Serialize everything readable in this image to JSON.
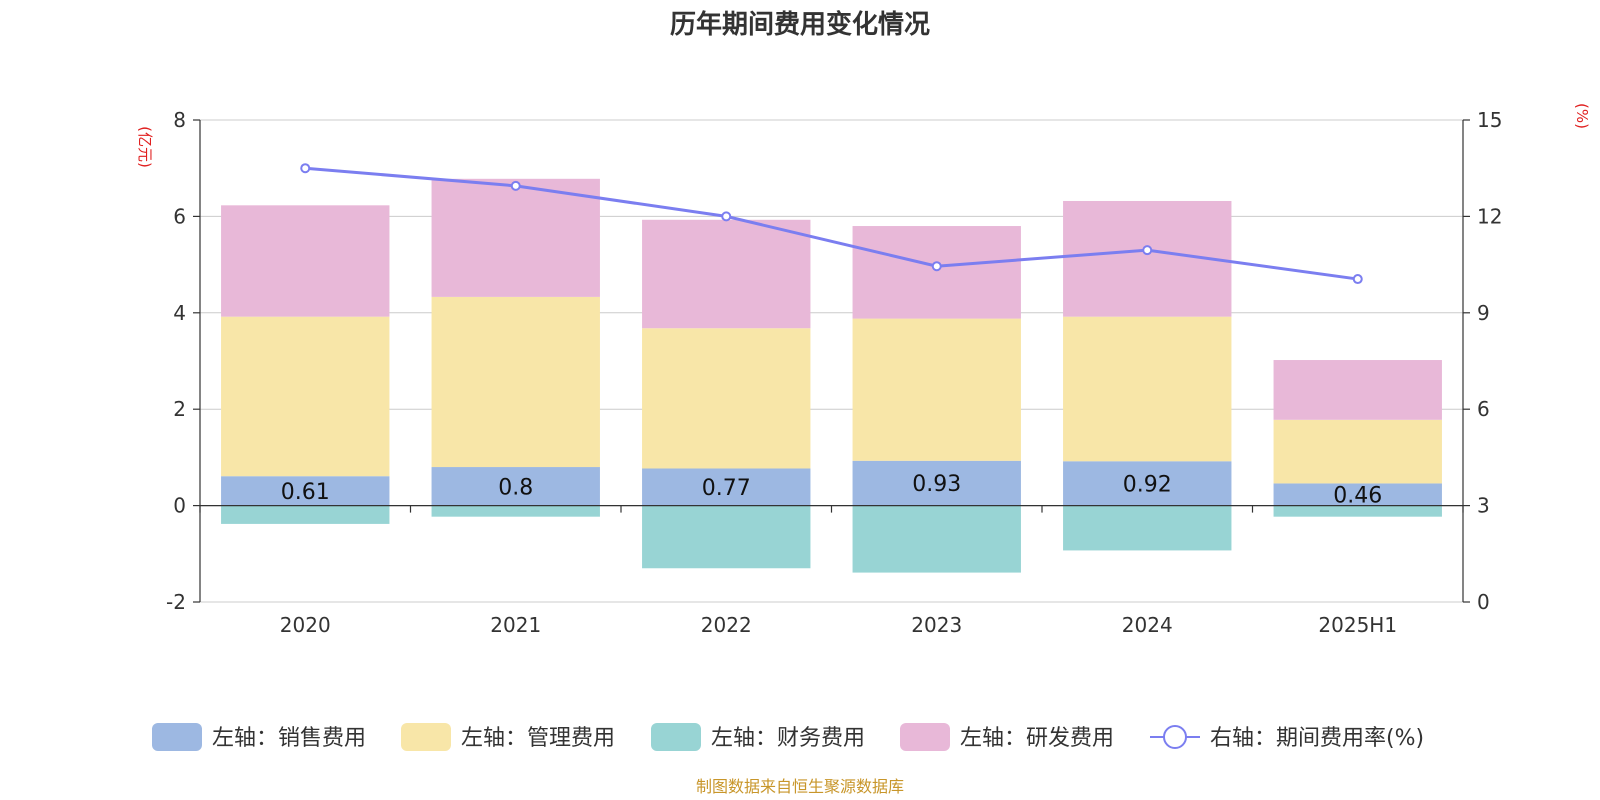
{
  "chart_data": {
    "type": "bar",
    "title": "历年期间费用变化情况",
    "categories": [
      "2020",
      "2021",
      "2022",
      "2023",
      "2024",
      "2025H1"
    ],
    "left_axis": {
      "unit_label": "(亿元)",
      "ylim": [
        -2,
        8
      ],
      "ticks": [
        "-2",
        "0",
        "2",
        "4",
        "6",
        "8"
      ]
    },
    "right_axis": {
      "unit_label": "(%)",
      "ylim": [
        0,
        15
      ],
      "ticks": [
        "0",
        "3",
        "6",
        "9",
        "12",
        "15"
      ]
    },
    "series": [
      {
        "name": "左轴：销售费用",
        "axis": "left",
        "kind": "bar",
        "color": "#9db8e2",
        "values": [
          0.61,
          0.8,
          0.77,
          0.93,
          0.92,
          0.46
        ],
        "labels": [
          "0.61",
          "0.8",
          "0.77",
          "0.93",
          "0.92",
          "0.46"
        ]
      },
      {
        "name": "左轴：管理费用",
        "axis": "left",
        "kind": "bar",
        "color": "#f8e6a8",
        "values": [
          3.31,
          3.53,
          2.91,
          2.95,
          3.0,
          1.32
        ]
      },
      {
        "name": "左轴：财务费用",
        "axis": "left",
        "kind": "bar",
        "color": "#98d4d4",
        "values": [
          -0.38,
          -0.23,
          -1.3,
          -1.39,
          -0.93,
          -0.23
        ]
      },
      {
        "name": "左轴：研发费用",
        "axis": "left",
        "kind": "bar",
        "color": "#e8b8d8",
        "values": [
          2.31,
          2.45,
          2.25,
          1.92,
          2.4,
          1.24
        ]
      },
      {
        "name": "右轴：期间费用率(%)",
        "axis": "right",
        "kind": "line",
        "color": "#7b7ef0",
        "values": [
          13.5,
          12.95,
          12.0,
          10.45,
          10.95,
          10.05
        ]
      }
    ],
    "legend_position": "bottom",
    "grid": true
  },
  "footer": {
    "source": "制图数据来自恒生聚源数据库",
    "source_color": "#c8962a"
  },
  "colors": {
    "axis_unit": "#e02020",
    "grid": "#cccccc",
    "axis": "#333333"
  }
}
